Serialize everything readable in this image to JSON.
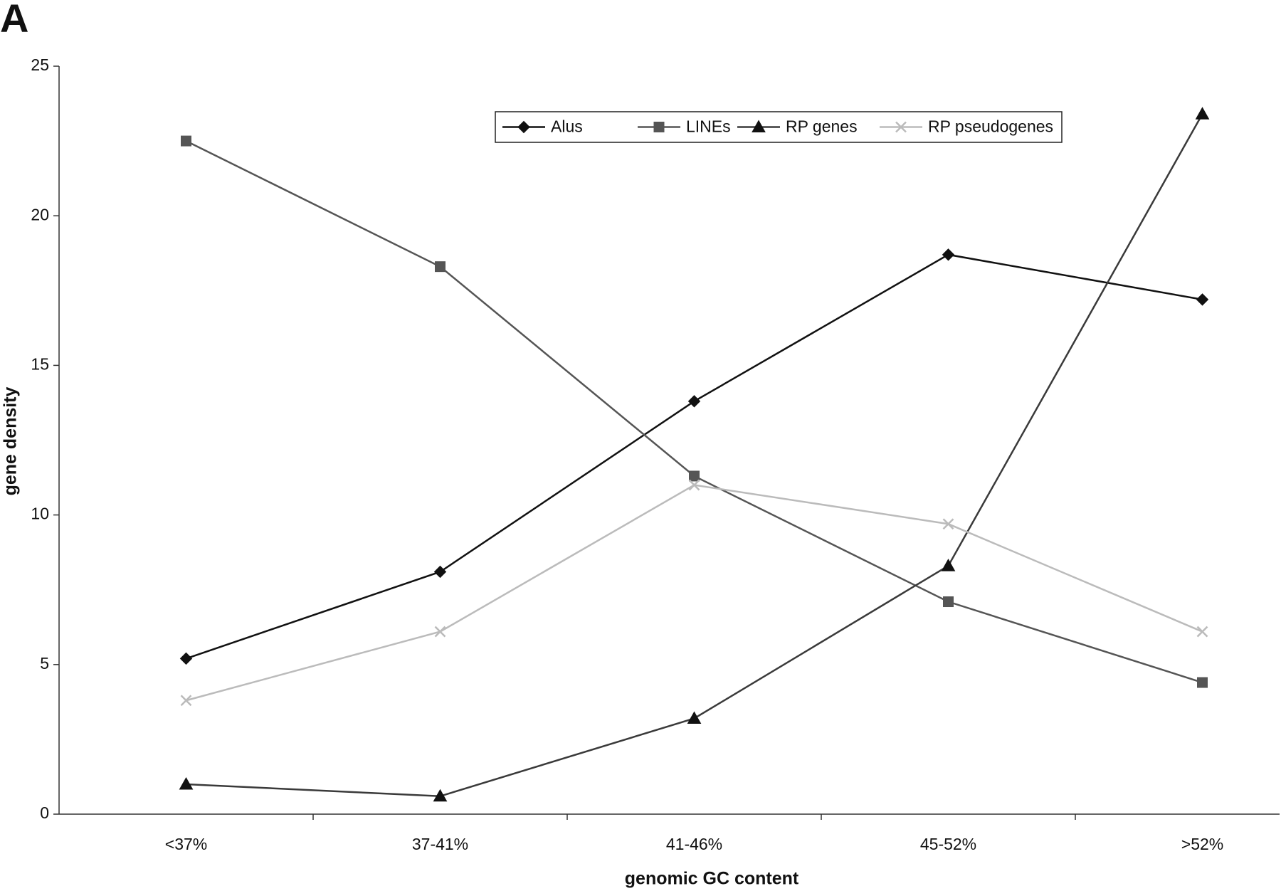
{
  "panel_label": "A",
  "chart_data": {
    "type": "line",
    "x_label": "genomic GC content",
    "y_label": "gene density",
    "categories": [
      "<37%",
      "37-41%",
      "41-46%",
      "45-52%",
      ">52%"
    ],
    "series": [
      {
        "name": "Alus",
        "color": "#111111",
        "marker": "diamond",
        "values": [
          5.2,
          8.1,
          13.8,
          18.7,
          17.2
        ]
      },
      {
        "name": "LINEs",
        "color": "#555555",
        "marker": "square",
        "values": [
          22.5,
          18.3,
          11.3,
          7.1,
          4.4
        ]
      },
      {
        "name": "RP genes",
        "color": "#3a3a3a",
        "marker": "triangle",
        "values": [
          1.0,
          0.6,
          3.2,
          8.3,
          23.4
        ]
      },
      {
        "name": "RP pseudogenes",
        "color": "#bbbbbb",
        "marker": "x",
        "values": [
          3.8,
          6.1,
          11.0,
          9.7,
          6.1
        ]
      }
    ],
    "ylim": [
      0,
      25
    ],
    "yticks": [
      0,
      5,
      10,
      15,
      20,
      25
    ],
    "grid": false,
    "legend": "top"
  }
}
